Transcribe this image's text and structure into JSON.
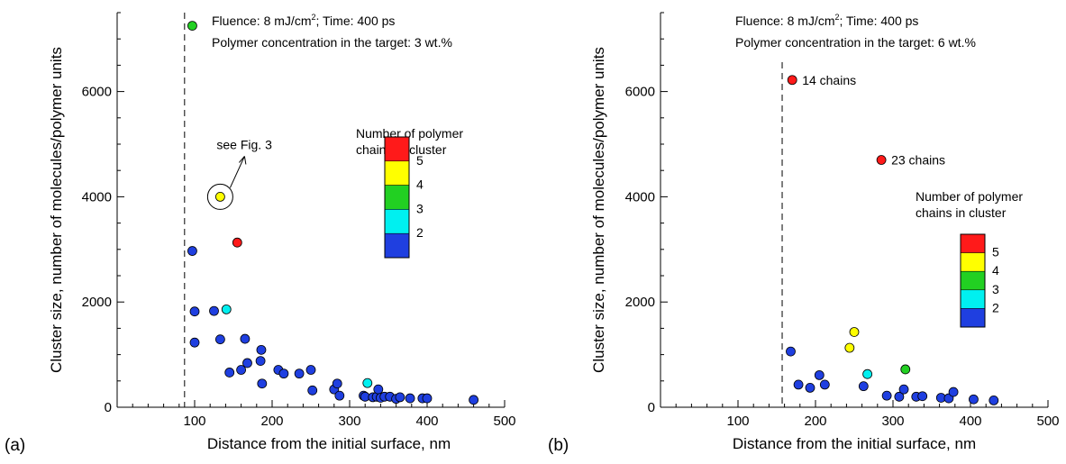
{
  "legend_colors": {
    "2": "#1f3fe0",
    "3": "#00f0f0",
    "4": "#22d022",
    "4.5": "#ffff00",
    "5": "#ff1a1a"
  },
  "chart_data": [
    {
      "type": "scatter",
      "panel_label": "(a)",
      "xlabel": "Distance from the initial surface, nm",
      "ylabel": "Cluster size, number of molecules/polymer units",
      "xlim": [
        0,
        500
      ],
      "ylim": [
        0,
        7500
      ],
      "xticks": [
        "100",
        "200",
        "300",
        "400",
        "500"
      ],
      "yticks": [
        "0",
        "2000",
        "4000",
        "6000"
      ],
      "annotation_line1": "Fluence: 8 mJ/cm",
      "annotation_sup": "2",
      "annotation_line1_rest": ";   Time: 400 ps",
      "annotation_line2": "Polymer concentration in the target: 3 wt.%",
      "legend_title_1": "Number of polymer",
      "legend_title_2": "chains in cluster",
      "legend_levels": [
        "5",
        "4",
        "3",
        "2"
      ],
      "vertical_line_x": 87,
      "callout_text": "see Fig. 3",
      "callout_point": [
        133,
        4000
      ],
      "points": [
        {
          "x": 97,
          "y": 7250,
          "chains": 4
        },
        {
          "x": 133,
          "y": 4000,
          "chains": 4.5
        },
        {
          "x": 155,
          "y": 3130,
          "chains": 5
        },
        {
          "x": 97,
          "y": 2970,
          "chains": 2
        },
        {
          "x": 100,
          "y": 1820,
          "chains": 2
        },
        {
          "x": 125,
          "y": 1830,
          "chains": 2
        },
        {
          "x": 141,
          "y": 1860,
          "chains": 3
        },
        {
          "x": 100,
          "y": 1230,
          "chains": 2
        },
        {
          "x": 133,
          "y": 1290,
          "chains": 2
        },
        {
          "x": 165,
          "y": 1300,
          "chains": 2
        },
        {
          "x": 145,
          "y": 660,
          "chains": 2
        },
        {
          "x": 160,
          "y": 710,
          "chains": 2
        },
        {
          "x": 168,
          "y": 840,
          "chains": 2
        },
        {
          "x": 185,
          "y": 880,
          "chains": 2
        },
        {
          "x": 186,
          "y": 1090,
          "chains": 2
        },
        {
          "x": 187,
          "y": 450,
          "chains": 2
        },
        {
          "x": 208,
          "y": 710,
          "chains": 2
        },
        {
          "x": 215,
          "y": 640,
          "chains": 2
        },
        {
          "x": 235,
          "y": 640,
          "chains": 2
        },
        {
          "x": 250,
          "y": 710,
          "chains": 2
        },
        {
          "x": 252,
          "y": 320,
          "chains": 2
        },
        {
          "x": 280,
          "y": 340,
          "chains": 2
        },
        {
          "x": 284,
          "y": 450,
          "chains": 2
        },
        {
          "x": 287,
          "y": 220,
          "chains": 2
        },
        {
          "x": 318,
          "y": 220,
          "chains": 2
        },
        {
          "x": 320,
          "y": 200,
          "chains": 2
        },
        {
          "x": 323,
          "y": 460,
          "chains": 3
        },
        {
          "x": 330,
          "y": 190,
          "chains": 2
        },
        {
          "x": 335,
          "y": 200,
          "chains": 2
        },
        {
          "x": 337,
          "y": 340,
          "chains": 2
        },
        {
          "x": 340,
          "y": 180,
          "chains": 2
        },
        {
          "x": 345,
          "y": 200,
          "chains": 2
        },
        {
          "x": 352,
          "y": 200,
          "chains": 2
        },
        {
          "x": 360,
          "y": 160,
          "chains": 2
        },
        {
          "x": 365,
          "y": 190,
          "chains": 2
        },
        {
          "x": 378,
          "y": 170,
          "chains": 2
        },
        {
          "x": 394,
          "y": 170,
          "chains": 2
        },
        {
          "x": 400,
          "y": 170,
          "chains": 2
        },
        {
          "x": 460,
          "y": 140,
          "chains": 2
        }
      ]
    },
    {
      "type": "scatter",
      "panel_label": "(b)",
      "xlabel": "Distance from the initial surface, nm",
      "ylabel": "Cluster size, number of molecules/polymer units",
      "xlim": [
        0,
        500
      ],
      "ylim": [
        0,
        7500
      ],
      "xticks": [
        "100",
        "200",
        "300",
        "400",
        "500"
      ],
      "yticks": [
        "0",
        "2000",
        "4000",
        "6000"
      ],
      "annotation_line1": "Fluence: 8 mJ/cm",
      "annotation_sup": "2",
      "annotation_line1_rest": ";   Time: 400 ps",
      "annotation_line2": "Polymer concentration in the target: 6 wt.%",
      "legend_title_1": "Number of polymer",
      "legend_title_2": "chains in cluster",
      "legend_levels": [
        "5",
        "4",
        "3",
        "2"
      ],
      "vertical_line_x": 157,
      "point_labels": [
        {
          "text": "14 chains",
          "x": 170,
          "y": 6220
        },
        {
          "text": "23 chains",
          "x": 285,
          "y": 4700
        }
      ],
      "points": [
        {
          "x": 170,
          "y": 6220,
          "chains": 5
        },
        {
          "x": 285,
          "y": 4700,
          "chains": 5
        },
        {
          "x": 250,
          "y": 1430,
          "chains": 4.5
        },
        {
          "x": 244,
          "y": 1130,
          "chains": 4.5
        },
        {
          "x": 168,
          "y": 1060,
          "chains": 2
        },
        {
          "x": 178,
          "y": 430,
          "chains": 2
        },
        {
          "x": 193,
          "y": 370,
          "chains": 2
        },
        {
          "x": 205,
          "y": 610,
          "chains": 2
        },
        {
          "x": 212,
          "y": 430,
          "chains": 2
        },
        {
          "x": 262,
          "y": 400,
          "chains": 2
        },
        {
          "x": 267,
          "y": 630,
          "chains": 3
        },
        {
          "x": 292,
          "y": 220,
          "chains": 2
        },
        {
          "x": 308,
          "y": 200,
          "chains": 2
        },
        {
          "x": 314,
          "y": 340,
          "chains": 2
        },
        {
          "x": 316,
          "y": 720,
          "chains": 4
        },
        {
          "x": 330,
          "y": 200,
          "chains": 2
        },
        {
          "x": 338,
          "y": 210,
          "chains": 2
        },
        {
          "x": 362,
          "y": 180,
          "chains": 2
        },
        {
          "x": 372,
          "y": 170,
          "chains": 2
        },
        {
          "x": 378,
          "y": 290,
          "chains": 2
        },
        {
          "x": 404,
          "y": 150,
          "chains": 2
        },
        {
          "x": 430,
          "y": 130,
          "chains": 2
        }
      ]
    }
  ]
}
